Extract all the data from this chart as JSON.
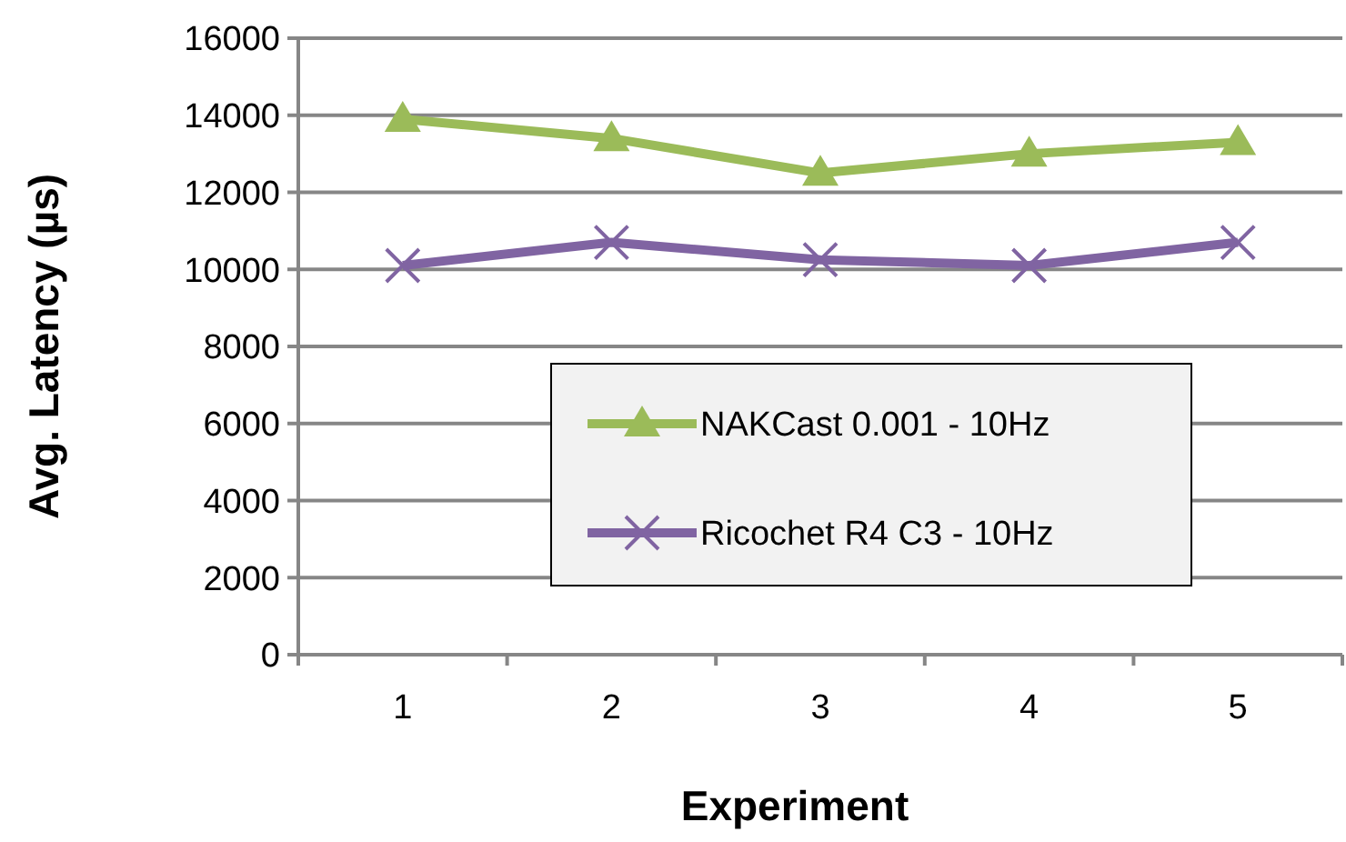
{
  "chart_data": {
    "type": "line",
    "xlabel": "Experiment",
    "ylabel": "Avg. Latency (µs)",
    "categories": [
      "1",
      "2",
      "3",
      "4",
      "5"
    ],
    "series": [
      {
        "name": "NAKCast 0.001 - 10Hz",
        "color": "#9bbb59",
        "marker": "triangle",
        "values": [
          13900,
          13400,
          12500,
          13000,
          13300
        ]
      },
      {
        "name": "Ricochet R4 C3 - 10Hz",
        "color": "#8064a2",
        "marker": "cross",
        "values": [
          10100,
          10700,
          10250,
          10100,
          10700
        ]
      }
    ],
    "ylim": [
      0,
      16000
    ],
    "yticks": [
      0,
      2000,
      4000,
      6000,
      8000,
      10000,
      12000,
      14000,
      16000
    ],
    "grid": "y",
    "legend": "center"
  }
}
